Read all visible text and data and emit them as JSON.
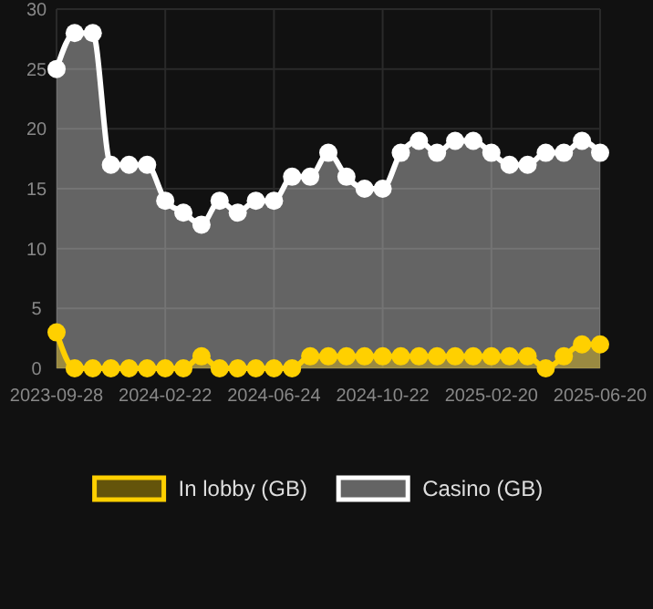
{
  "chart_data": {
    "type": "area",
    "categories": [
      "2023-09-28",
      null,
      null,
      null,
      null,
      null,
      "2024-02-22",
      null,
      null,
      null,
      null,
      null,
      "2024-06-24",
      null,
      null,
      null,
      null,
      null,
      "2024-10-22",
      null,
      null,
      null,
      null,
      null,
      "2025-02-20",
      null,
      null,
      null,
      null,
      null,
      "2025-06-20"
    ],
    "series": [
      {
        "name": "In lobby (GB)",
        "color": "#ffd000",
        "values": [
          3,
          0,
          0,
          0,
          0,
          0,
          0,
          0,
          1,
          0,
          0,
          0,
          0,
          0,
          1,
          1,
          1,
          1,
          1,
          1,
          1,
          1,
          1,
          1,
          1,
          1,
          1,
          0,
          1,
          2,
          2
        ]
      },
      {
        "name": "Casino (GB)",
        "color": "#ffffff",
        "values": [
          25,
          28,
          28,
          17,
          17,
          17,
          14,
          13,
          12,
          14,
          13,
          14,
          14,
          16,
          16,
          18,
          16,
          15,
          15,
          18,
          19,
          18,
          19,
          19,
          18,
          17,
          17,
          18,
          18,
          19,
          18
        ]
      }
    ],
    "ylim": [
      0,
      30
    ],
    "yticks": [
      0,
      5,
      10,
      15,
      20,
      25,
      30
    ],
    "grid": true,
    "legend": "bottom",
    "marker": "circle"
  }
}
